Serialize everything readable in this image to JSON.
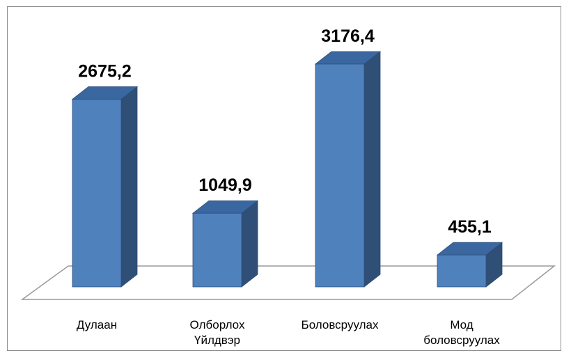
{
  "chart_data": {
    "type": "bar",
    "style": "3d-column",
    "categories": [
      [
        "Дулаан"
      ],
      [
        "Олборлох",
        "Үйлдвэр"
      ],
      [
        "Боловсруулах"
      ],
      [
        "Мод",
        "боловсруулах"
      ]
    ],
    "values": [
      2675.2,
      1049.9,
      3176.4,
      455.1
    ],
    "value_labels": [
      "2675,2",
      "1049,9",
      "3176,4",
      "455,1"
    ],
    "title": "",
    "xlabel": "",
    "ylabel": "",
    "ylim": [
      0,
      3176.4
    ],
    "grid": false,
    "legend": "none",
    "colors": {
      "front": "#4f81bd",
      "side": "#2f4f77",
      "top": "#3b67a0",
      "edge": "#2c4f7c",
      "floor": "#9a9a9a"
    }
  }
}
